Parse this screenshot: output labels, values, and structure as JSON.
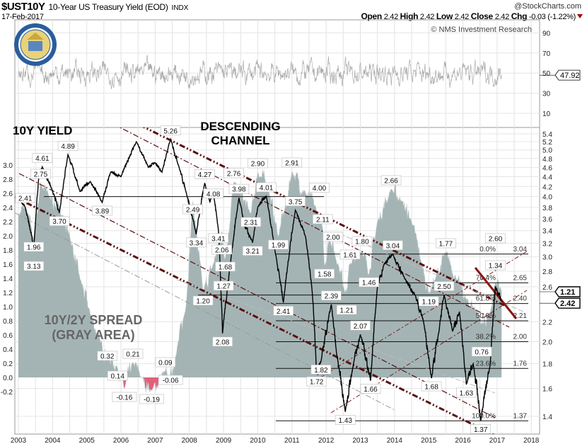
{
  "header": {
    "symbol": "$UST10Y",
    "name": "10-Year US Treasury Yield (EOD)",
    "exchange": "INDX",
    "watermark": "@StockCharts.com",
    "date": "17-Feb-2017",
    "open_label": "Open",
    "open": "2.42",
    "high_label": "High",
    "high": "2.42",
    "low_label": "Low",
    "low": "2.42",
    "close_label": "Close",
    "close": "2.42",
    "chg_label": "Chg",
    "chg": "-0.03 (-1.22%)"
  },
  "copyright": "© NMS Investment Research",
  "logo_text": "THE DEPARTMENT OF THE TREASURY",
  "colors": {
    "spread_fill": "#a4b4b4",
    "negative_fill": "#e0607a",
    "channel": "#5a0f0f",
    "yield_line": "#000000"
  },
  "chart_data": {
    "type": "line",
    "title": "10-Year US Treasury Yield (EOD)",
    "annotations_text": {
      "yield": "10Y YIELD",
      "channel_line1": "DESCENDING",
      "channel_line2": "CHANNEL",
      "spread_line1": "10Y/2Y SPREAD",
      "spread_line2": "(GRAY AREA)"
    },
    "x_ticks": [
      "2003",
      "2004",
      "2005",
      "2006",
      "2007",
      "2008",
      "2009",
      "2010",
      "2011",
      "2012",
      "2013",
      "2014",
      "2015",
      "2016",
      "2017",
      "2018"
    ],
    "xlim": [
      2002.9,
      2018.25
    ],
    "right_axis": {
      "scale": "log",
      "ylim": [
        1.32,
        5.6
      ],
      "ticks": [
        "5.4",
        "5.2",
        "5.0",
        "4.8",
        "4.6",
        "4.4",
        "4.2",
        "4.0",
        "3.8",
        "3.6",
        "3.4",
        "3.2",
        "3.0",
        "2.8",
        "2.6",
        "2.2",
        "2.0",
        "1.8",
        "1.6",
        "1.4"
      ]
    },
    "left_axis": {
      "scale": "linear",
      "ticks": [
        "3.0",
        "2.8",
        "2.6",
        "2.4",
        "2.2",
        "2.0",
        "1.8",
        "1.6",
        "1.4",
        "1.2",
        "1.0",
        "0.8",
        "0.6",
        "0.4",
        "0.2",
        "0.0",
        "-0.2"
      ]
    },
    "rsi_panel": {
      "ticks": [
        "90",
        "70",
        "50",
        "30",
        "10"
      ],
      "last_value": "47.92",
      "ylim": [
        0,
        100
      ]
    },
    "last_labels": {
      "spread": "1.21",
      "yield": "2.42"
    },
    "series": [
      {
        "name": "10Y Yield",
        "axis": "right",
        "points": [
          [
            2003.0,
            4.0
          ],
          [
            2003.2,
            3.8
          ],
          [
            2003.45,
            3.13
          ],
          [
            2003.6,
            4.41
          ],
          [
            2003.7,
            4.61
          ],
          [
            2004.0,
            4.1
          ],
          [
            2004.2,
            3.7
          ],
          [
            2004.45,
            4.89
          ],
          [
            2004.8,
            4.1
          ],
          [
            2005.1,
            4.3
          ],
          [
            2005.45,
            3.89
          ],
          [
            2005.7,
            4.5
          ],
          [
            2006.0,
            4.4
          ],
          [
            2006.45,
            5.2
          ],
          [
            2006.8,
            4.6
          ],
          [
            2007.0,
            4.7
          ],
          [
            2007.2,
            4.5
          ],
          [
            2007.45,
            5.26
          ],
          [
            2007.7,
            4.6
          ],
          [
            2007.9,
            4.1
          ],
          [
            2008.2,
            3.34
          ],
          [
            2008.45,
            4.27
          ],
          [
            2008.6,
            3.9
          ],
          [
            2008.7,
            4.08
          ],
          [
            2008.85,
            3.41
          ],
          [
            2008.97,
            2.08
          ],
          [
            2009.2,
            2.9
          ],
          [
            2009.45,
            3.98
          ],
          [
            2009.6,
            3.5
          ],
          [
            2009.85,
            3.21
          ],
          [
            2010.0,
            3.8
          ],
          [
            2010.25,
            4.01
          ],
          [
            2010.5,
            3.1
          ],
          [
            2010.75,
            2.41
          ],
          [
            2011.1,
            3.75
          ],
          [
            2011.4,
            3.3
          ],
          [
            2011.6,
            2.5
          ],
          [
            2011.72,
            1.72
          ],
          [
            2011.85,
            1.82
          ],
          [
            2012.15,
            2.39
          ],
          [
            2012.3,
            1.9
          ],
          [
            2012.56,
            1.43
          ],
          [
            2012.8,
            1.8
          ],
          [
            2013.0,
            2.07
          ],
          [
            2013.3,
            1.66
          ],
          [
            2013.5,
            2.6
          ],
          [
            2013.7,
            2.9
          ],
          [
            2013.95,
            3.04
          ],
          [
            2014.3,
            2.7
          ],
          [
            2014.6,
            2.5
          ],
          [
            2014.85,
            2.2
          ],
          [
            2015.08,
            1.68
          ],
          [
            2015.3,
            2.1
          ],
          [
            2015.45,
            2.5
          ],
          [
            2015.7,
            2.1
          ],
          [
            2015.9,
            2.3
          ],
          [
            2016.1,
            1.63
          ],
          [
            2016.3,
            1.8
          ],
          [
            2016.52,
            1.37
          ],
          [
            2016.8,
            1.8
          ],
          [
            2016.95,
            2.6
          ],
          [
            2017.13,
            2.42
          ]
        ]
      },
      {
        "name": "10Y/2Y Spread",
        "axis": "left",
        "points": [
          [
            2003.0,
            2.3
          ],
          [
            2003.2,
            2.41
          ],
          [
            2003.45,
            1.96
          ],
          [
            2003.65,
            2.75
          ],
          [
            2003.9,
            2.55
          ],
          [
            2004.2,
            2.4
          ],
          [
            2004.5,
            2.0
          ],
          [
            2004.8,
            1.4
          ],
          [
            2005.1,
            0.9
          ],
          [
            2005.4,
            0.5
          ],
          [
            2005.6,
            0.32
          ],
          [
            2005.9,
            0.14
          ],
          [
            2006.1,
            -0.16
          ],
          [
            2006.35,
            0.21
          ],
          [
            2006.6,
            0.0
          ],
          [
            2006.9,
            -0.19
          ],
          [
            2007.3,
            0.09
          ],
          [
            2007.4,
            -0.06
          ],
          [
            2007.6,
            0.3
          ],
          [
            2007.9,
            1.0
          ],
          [
            2008.1,
            2.49
          ],
          [
            2008.4,
            1.2
          ],
          [
            2008.7,
            1.6
          ],
          [
            2008.95,
            2.06
          ],
          [
            2009.05,
            1.68
          ],
          [
            2009.3,
            2.76
          ],
          [
            2009.8,
            2.31
          ],
          [
            2010.0,
            2.9
          ],
          [
            2010.3,
            2.7
          ],
          [
            2010.6,
            1.99
          ],
          [
            2010.8,
            2.4
          ],
          [
            2011.0,
            2.91
          ],
          [
            2011.4,
            2.6
          ],
          [
            2011.7,
            2.4
          ],
          [
            2011.9,
            2.11
          ],
          [
            2011.95,
            1.58
          ],
          [
            2012.1,
            2.0
          ],
          [
            2012.35,
            1.6
          ],
          [
            2012.6,
            1.21
          ],
          [
            2012.7,
            1.61
          ],
          [
            2013.05,
            1.8
          ],
          [
            2013.25,
            1.46
          ],
          [
            2013.5,
            2.2
          ],
          [
            2013.9,
            2.66
          ],
          [
            2014.2,
            2.5
          ],
          [
            2014.5,
            2.2
          ],
          [
            2014.8,
            1.6
          ],
          [
            2015.0,
            1.19
          ],
          [
            2015.2,
            1.4
          ],
          [
            2015.5,
            1.77
          ],
          [
            2015.8,
            1.4
          ],
          [
            2016.1,
            1.1
          ],
          [
            2016.4,
            0.95
          ],
          [
            2016.55,
            0.76
          ],
          [
            2016.8,
            0.9
          ],
          [
            2016.95,
            1.34
          ],
          [
            2017.13,
            1.21
          ]
        ]
      }
    ],
    "point_labels": [
      {
        "axis": "right",
        "t": 2003.7,
        "v": 4.61,
        "text": "4.61",
        "pos": "above"
      },
      {
        "axis": "right",
        "t": 2004.45,
        "v": 4.89,
        "text": "4.89",
        "pos": "above"
      },
      {
        "axis": "right",
        "t": 2003.45,
        "v": 3.13,
        "text": "3.13",
        "pos": "below2"
      },
      {
        "axis": "left",
        "t": 2003.45,
        "v": 1.96,
        "text": "1.96",
        "pos": "below"
      },
      {
        "axis": "left",
        "t": 2003.65,
        "v": 2.75,
        "text": "2.75",
        "pos": "above"
      },
      {
        "axis": "left",
        "t": 2003.2,
        "v": 2.41,
        "text": "2.41",
        "pos": "above"
      },
      {
        "axis": "right",
        "t": 2004.2,
        "v": 3.7,
        "text": "3.70",
        "pos": "below"
      },
      {
        "axis": "right",
        "t": 2005.45,
        "v": 3.89,
        "text": "3.89",
        "pos": "below"
      },
      {
        "axis": "right",
        "t": 2007.45,
        "v": 5.26,
        "text": "5.26",
        "pos": "above"
      },
      {
        "axis": "right",
        "t": 2008.2,
        "v": 3.34,
        "text": "3.34",
        "pos": "below"
      },
      {
        "axis": "right",
        "t": 2008.45,
        "v": 4.27,
        "text": "4.27",
        "pos": "above"
      },
      {
        "axis": "right",
        "t": 2008.7,
        "v": 4.08,
        "text": "4.08",
        "pos": "above"
      },
      {
        "axis": "right",
        "t": 2008.85,
        "v": 3.41,
        "text": "3.41",
        "pos": "below"
      },
      {
        "axis": "left",
        "t": 2008.1,
        "v": 2.49,
        "text": "2.49",
        "pos": "below"
      },
      {
        "axis": "left",
        "t": 2008.95,
        "v": 2.06,
        "text": "2.06",
        "pos": "below"
      },
      {
        "axis": "left",
        "t": 2009.05,
        "v": 1.68,
        "text": "1.68",
        "pos": "below"
      },
      {
        "axis": "left",
        "t": 2008.4,
        "v": 1.2,
        "text": "1.20",
        "pos": "below"
      },
      {
        "axis": "left",
        "t": 2009.0,
        "v": 1.27,
        "text": "1.27",
        "pos": "below"
      },
      {
        "axis": "right",
        "t": 2008.97,
        "v": 2.08,
        "text": "2.08",
        "pos": "below"
      },
      {
        "axis": "right",
        "t": 2009.45,
        "v": 3.98,
        "text": "3.98",
        "pos": "above"
      },
      {
        "axis": "left",
        "t": 2009.3,
        "v": 2.76,
        "text": "2.76",
        "pos": "above"
      },
      {
        "axis": "left",
        "t": 2010.0,
        "v": 2.9,
        "text": "2.90",
        "pos": "above"
      },
      {
        "axis": "right",
        "t": 2010.25,
        "v": 4.01,
        "text": "4.01",
        "pos": "above"
      },
      {
        "axis": "left",
        "t": 2009.8,
        "v": 2.31,
        "text": "2.31",
        "pos": "below"
      },
      {
        "axis": "right",
        "t": 2009.85,
        "v": 3.21,
        "text": "3.21",
        "pos": "below"
      },
      {
        "axis": "left",
        "t": 2010.6,
        "v": 1.99,
        "text": "1.99",
        "pos": "below"
      },
      {
        "axis": "right",
        "t": 2010.75,
        "v": 2.41,
        "text": "2.41",
        "pos": "below"
      },
      {
        "axis": "left",
        "t": 2011.0,
        "v": 2.91,
        "text": "2.91",
        "pos": "above"
      },
      {
        "axis": "right",
        "t": 2011.1,
        "v": 3.75,
        "text": "3.75",
        "pos": "above"
      },
      {
        "axis": "right",
        "t": 2011.8,
        "v": 4.0,
        "text": "4.00",
        "pos": "above"
      },
      {
        "axis": "left",
        "t": 2011.9,
        "v": 2.11,
        "text": "2.11",
        "pos": "above"
      },
      {
        "axis": "left",
        "t": 2012.2,
        "v": 2.0,
        "text": "2.00",
        "pos": "above"
      },
      {
        "axis": "left",
        "t": 2011.95,
        "v": 1.58,
        "text": "1.58",
        "pos": "below"
      },
      {
        "axis": "right",
        "t": 2011.85,
        "v": 1.82,
        "text": "1.82",
        "pos": "below"
      },
      {
        "axis": "right",
        "t": 2011.72,
        "v": 1.72,
        "text": "1.72",
        "pos": "below"
      },
      {
        "axis": "right",
        "t": 2012.15,
        "v": 2.39,
        "text": "2.39",
        "pos": "above"
      },
      {
        "axis": "left",
        "t": 2012.6,
        "v": 1.21,
        "text": "1.21",
        "pos": "below"
      },
      {
        "axis": "left",
        "t": 2012.7,
        "v": 1.61,
        "text": "1.61",
        "pos": "above"
      },
      {
        "axis": "right",
        "t": 2012.56,
        "v": 1.43,
        "text": "1.43",
        "pos": "below"
      },
      {
        "axis": "left",
        "t": 2013.05,
        "v": 1.8,
        "text": "1.80",
        "pos": "above"
      },
      {
        "axis": "right",
        "t": 2013.0,
        "v": 2.07,
        "text": "2.07",
        "pos": "above"
      },
      {
        "axis": "right",
        "t": 2013.3,
        "v": 1.66,
        "text": "1.66",
        "pos": "below"
      },
      {
        "axis": "left",
        "t": 2013.25,
        "v": 1.46,
        "text": "1.46",
        "pos": "below"
      },
      {
        "axis": "left",
        "t": 2013.9,
        "v": 2.66,
        "text": "2.66",
        "pos": "above"
      },
      {
        "axis": "right",
        "t": 2013.95,
        "v": 3.04,
        "text": "3.04",
        "pos": "above"
      },
      {
        "axis": "left",
        "t": 2015.0,
        "v": 1.19,
        "text": "1.19",
        "pos": "below"
      },
      {
        "axis": "right",
        "t": 2015.45,
        "v": 2.5,
        "text": "2.50",
        "pos": "above"
      },
      {
        "axis": "right",
        "t": 2015.08,
        "v": 1.68,
        "text": "1.68",
        "pos": "below"
      },
      {
        "axis": "left",
        "t": 2015.5,
        "v": 1.77,
        "text": "1.77",
        "pos": "above"
      },
      {
        "axis": "right",
        "t": 2016.1,
        "v": 1.63,
        "text": "1.63",
        "pos": "below"
      },
      {
        "axis": "left",
        "t": 2016.55,
        "v": 0.76,
        "text": "0.76",
        "pos": "below"
      },
      {
        "axis": "right",
        "t": 2016.52,
        "v": 1.37,
        "text": "1.37",
        "pos": "below"
      },
      {
        "axis": "left",
        "t": 2016.95,
        "v": 1.34,
        "text": "1.34",
        "pos": "above2"
      },
      {
        "axis": "right",
        "t": 2016.95,
        "v": 2.6,
        "text": "2.60",
        "pos": "above"
      },
      {
        "axis": "left",
        "t": 2005.9,
        "v": 0.14,
        "text": "0.14",
        "pos": "below"
      },
      {
        "axis": "left",
        "t": 2005.6,
        "v": 0.32,
        "text": "0.32",
        "pos": "above"
      },
      {
        "axis": "left",
        "t": 2006.1,
        "v": -0.16,
        "text": "-0.16",
        "pos": "below"
      },
      {
        "axis": "left",
        "t": 2006.35,
        "v": 0.21,
        "text": "0.21",
        "pos": "above"
      },
      {
        "axis": "left",
        "t": 2006.9,
        "v": -0.19,
        "text": "-0.19",
        "pos": "below"
      },
      {
        "axis": "left",
        "t": 2007.3,
        "v": 0.09,
        "text": "0.09",
        "pos": "above"
      },
      {
        "axis": "left",
        "t": 2007.45,
        "v": -0.06,
        "text": "-0.06",
        "pos": "below"
      }
    ],
    "fibonacci": [
      {
        "pct": "0.0%",
        "v": 3.04
      },
      {
        "pct": "76.4%",
        "v": 2.65
      },
      {
        "pct": "61.8%",
        "v": 2.4
      },
      {
        "pct": "50.0%",
        "v": 2.21
      },
      {
        "pct": "38.2%",
        "v": 2.0
      },
      {
        "pct": "23.6%",
        "v": 1.76
      },
      {
        "pct": "100.0%",
        "v": 1.37
      }
    ],
    "horizontal_levels": [
      4.0,
      2.5
    ],
    "grid": true
  }
}
